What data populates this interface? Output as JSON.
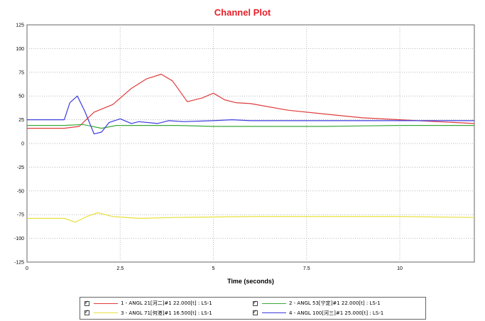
{
  "chart_data": {
    "type": "line",
    "title": "Channel Plot",
    "xlabel": "Time (seconds)",
    "ylabel": "",
    "xlim": [
      0,
      12
    ],
    "ylim": [
      -125,
      125
    ],
    "xticks": [
      0,
      2.5,
      5,
      7.5,
      10
    ],
    "xtick_labels": [
      "0",
      "2.5",
      "5",
      "7.5",
      "10"
    ],
    "yticks": [
      125,
      100,
      75,
      50,
      25,
      0,
      -25,
      -50,
      -75,
      -100,
      -125
    ],
    "ytick_labels": [
      "125",
      "100",
      "75",
      "50",
      "25",
      "0",
      "-25",
      "-50",
      "-75",
      "-100",
      "-125"
    ],
    "grid": true,
    "legend_position": "bottom",
    "series": [
      {
        "name": "1 - ANGL   21[河二]#1        22.000[t] : LS-1",
        "color": "#e03c3c",
        "x": [
          0,
          1.0,
          1.4,
          1.8,
          2.3,
          2.8,
          3.2,
          3.6,
          3.9,
          4.3,
          4.7,
          5.0,
          5.3,
          5.6,
          6.0,
          7.0,
          8.0,
          9.0,
          10.0,
          11.0,
          12.0
        ],
        "y": [
          16,
          16,
          18,
          33,
          41,
          58,
          68,
          73,
          66,
          44,
          48,
          53,
          46,
          43,
          42,
          35,
          31,
          27,
          25,
          23,
          21
        ]
      },
      {
        "name": "2 - ANGL   53[宁定]#1        22.000[t] : LS-1",
        "color": "#3aa838",
        "x": [
          0,
          1.0,
          1.5,
          2.0,
          2.4,
          3.0,
          4.0,
          5.0,
          6.0,
          8.0,
          10.0,
          12.0
        ],
        "y": [
          19,
          19,
          20,
          16,
          19,
          19,
          19,
          18,
          18,
          18,
          19,
          19
        ]
      },
      {
        "name": "3 - ANGL   71[何港]#1        16.500[t] : LS-1",
        "color": "#e8e03c",
        "x": [
          0,
          1.0,
          1.3,
          1.6,
          1.9,
          2.3,
          3.0,
          4.0,
          6.0,
          8.0,
          10.0,
          12.0
        ],
        "y": [
          -79,
          -79,
          -83,
          -77,
          -73,
          -77,
          -79,
          -78,
          -77,
          -77,
          -77,
          -78
        ]
      },
      {
        "name": "4 - ANGL   100[河三]#1        25.000[t] : LS-1",
        "color": "#3c3ce0",
        "x": [
          0,
          1.0,
          1.15,
          1.35,
          1.55,
          1.8,
          2.0,
          2.2,
          2.5,
          2.8,
          3.0,
          3.5,
          3.8,
          4.2,
          5.0,
          5.5,
          6.0,
          8.0,
          10.0,
          12.0
        ],
        "y": [
          25,
          25,
          43,
          50,
          34,
          10,
          12,
          22,
          26,
          21,
          23,
          21,
          24,
          23,
          24,
          25,
          24,
          24,
          24,
          24
        ]
      }
    ]
  }
}
